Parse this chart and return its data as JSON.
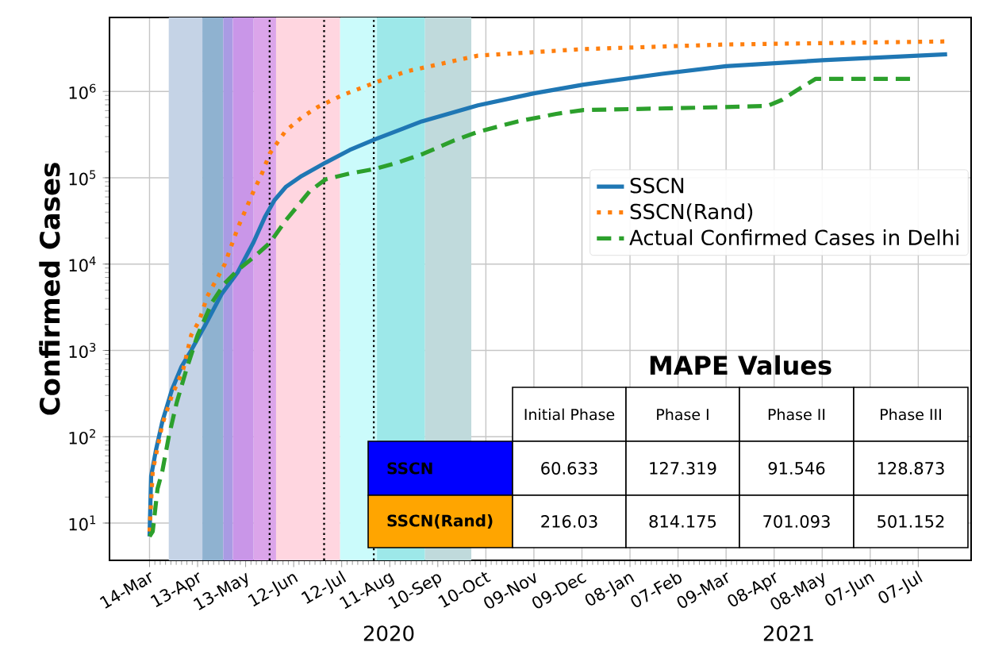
{
  "chart_data": {
    "type": "line",
    "ylabel": "Confirmed Cases",
    "annotations": [
      "2020",
      "2021",
      "MAPE Values",
      "Initial Phase",
      "Phase I",
      "Phase II",
      "Phase III",
      "SSCN",
      "SSCN(Rand)",
      "60.633",
      "127.319",
      "91.546",
      "128.873",
      "216.03",
      "814.175",
      "701.093",
      "501.152"
    ],
    "log": "y",
    "grid": true,
    "legend": "right",
    "marker": "none",
    "xlim": [
      "2020-02-18",
      "2021-08-09"
    ],
    "ylim": [
      3.7,
      7200000
    ],
    "xticks": [
      {
        "value": "2020-03-14",
        "label": "14-Mar"
      },
      {
        "value": "2020-04-13",
        "label": "13-Apr"
      },
      {
        "value": "2020-05-13",
        "label": "13-May"
      },
      {
        "value": "2020-06-12",
        "label": "12-Jun"
      },
      {
        "value": "2020-07-12",
        "label": "12-Jul"
      },
      {
        "value": "2020-08-11",
        "label": "11-Aug"
      },
      {
        "value": "2020-09-10",
        "label": "10-Sep"
      },
      {
        "value": "2020-10-10",
        "label": "10-Oct"
      },
      {
        "value": "2020-11-09",
        "label": "09-Nov"
      },
      {
        "value": "2020-12-09",
        "label": "09-Dec"
      },
      {
        "value": "2021-01-08",
        "label": "08-Jan"
      },
      {
        "value": "2021-02-07",
        "label": "07-Feb"
      },
      {
        "value": "2021-03-09",
        "label": "09-Mar"
      },
      {
        "value": "2021-04-08",
        "label": "08-Apr"
      },
      {
        "value": "2021-05-08",
        "label": "08-May"
      },
      {
        "value": "2021-06-07",
        "label": "07-Jun"
      },
      {
        "value": "2021-07-07",
        "label": "07-Jul"
      }
    ],
    "yticks": [
      {
        "value": 10,
        "label": "10$^{1}$"
      },
      {
        "value": 100,
        "label": "10$^{2}$"
      },
      {
        "value": 1000,
        "label": "10$^{3}$"
      },
      {
        "value": 10000,
        "label": "10$^{4}$"
      },
      {
        "value": 100000,
        "label": "10$^{5}$"
      },
      {
        "value": 1000000,
        "label": "10$^{6}$"
      }
    ],
    "bands": [
      {
        "axis": "x",
        "from": "2020-03-26",
        "to": "2020-04-16",
        "color": "#c5d3e6"
      },
      {
        "axis": "x",
        "from": "2020-04-16",
        "to": "2020-04-29",
        "color": "#8fb2d0"
      },
      {
        "axis": "x",
        "from": "2020-04-29",
        "to": "2020-05-05",
        "color": "#a99be3"
      },
      {
        "axis": "x",
        "from": "2020-05-05",
        "to": "2020-05-18",
        "color": "#c996e8"
      },
      {
        "axis": "x",
        "from": "2020-05-18",
        "to": "2020-06-01",
        "color": "#dba5ea"
      },
      {
        "axis": "x",
        "from": "2020-06-01",
        "to": "2020-07-11",
        "color": "#ffd6e0"
      },
      {
        "axis": "x",
        "from": "2020-07-11",
        "to": "2020-08-03",
        "color": "#cbfbfb"
      },
      {
        "axis": "x",
        "from": "2020-08-03",
        "to": "2020-09-02",
        "color": "#9de8e9"
      },
      {
        "axis": "x",
        "from": "2020-09-02",
        "to": "2020-10-01",
        "color": "#c0dadc"
      }
    ],
    "ref_lines": [
      {
        "axis": "x",
        "value": "2020-05-28",
        "color": "#000000",
        "line_style": "dotted"
      },
      {
        "axis": "x",
        "value": "2020-07-01",
        "color": "#000000",
        "line_style": "dotted"
      },
      {
        "axis": "x",
        "value": "2020-08-01",
        "color": "#000000",
        "line_style": "dotted"
      }
    ],
    "series": [
      {
        "name": "SSCN",
        "color": "#1f77b4",
        "line_style": "solid",
        "x": [
          "2020-03-14",
          "2020-03-15",
          "2020-03-18",
          "2020-03-22",
          "2020-03-28",
          "2020-04-03",
          "2020-04-09",
          "2020-04-18",
          "2020-04-28",
          "2020-05-08",
          "2020-05-18",
          "2020-05-25",
          "2020-05-31",
          "2020-06-07",
          "2020-06-17",
          "2020-07-02",
          "2020-07-17",
          "2020-08-02",
          "2020-08-31",
          "2020-10-05",
          "2020-11-09",
          "2020-12-10",
          "2021-01-28",
          "2021-03-09",
          "2021-05-08",
          "2021-07-25"
        ],
        "values": [
          7,
          35,
          70,
          150,
          350,
          650,
          1000,
          2000,
          4500,
          8000,
          18000,
          35000,
          55000,
          78000,
          105000,
          150000,
          210000,
          280000,
          450000,
          690000,
          950000,
          1200000,
          1600000,
          1960000,
          2300000,
          2700000
        ]
      },
      {
        "name": "SSCN(Rand)",
        "color": "#ff7f0e",
        "line_style": "dotted",
        "x": [
          "2020-03-14",
          "2020-03-16",
          "2020-03-22",
          "2020-03-28",
          "2020-04-04",
          "2020-04-09",
          "2020-04-14",
          "2020-04-19",
          "2020-04-30",
          "2020-05-08",
          "2020-05-18",
          "2020-05-23",
          "2020-05-28",
          "2020-06-07",
          "2020-06-17",
          "2020-06-27",
          "2020-07-12",
          "2020-08-02",
          "2020-08-21",
          "2020-10-05",
          "2020-12-10",
          "2021-03-09",
          "2021-07-25"
        ],
        "values": [
          8,
          40,
          140,
          300,
          600,
          1500,
          2200,
          4200,
          10000,
          26000,
          70000,
          110000,
          190000,
          350000,
          500000,
          660000,
          900000,
          1270000,
          1700000,
          2600000,
          3100000,
          3500000,
          3800000
        ]
      },
      {
        "name": "Actual Confirmed Cases in Delhi",
        "color": "#2ca02c",
        "line_style": "dashed",
        "x": [
          "2020-03-14",
          "2020-03-16",
          "2020-03-19",
          "2020-03-22",
          "2020-03-26",
          "2020-03-31",
          "2020-04-06",
          "2020-04-13",
          "2020-04-22",
          "2020-04-30",
          "2020-05-08",
          "2020-05-18",
          "2020-05-28",
          "2020-06-07",
          "2020-06-14",
          "2020-06-22",
          "2020-07-02",
          "2020-07-17",
          "2020-08-02",
          "2020-08-16",
          "2020-09-01",
          "2020-09-20",
          "2020-10-05",
          "2020-10-30",
          "2020-11-23",
          "2020-12-10",
          "2021-02-07",
          "2021-04-04",
          "2021-04-13",
          "2021-04-21",
          "2021-05-04",
          "2021-07-05"
        ],
        "values": [
          7,
          8,
          25,
          40,
          100,
          250,
          600,
          1500,
          3600,
          6000,
          8500,
          12000,
          17500,
          32000,
          46000,
          70000,
          96000,
          112000,
          127000,
          150000,
          190000,
          270000,
          340000,
          450000,
          550000,
          610000,
          640000,
          680000,
          800000,
          1000000,
          1400000,
          1400000
        ]
      }
    ]
  }
}
